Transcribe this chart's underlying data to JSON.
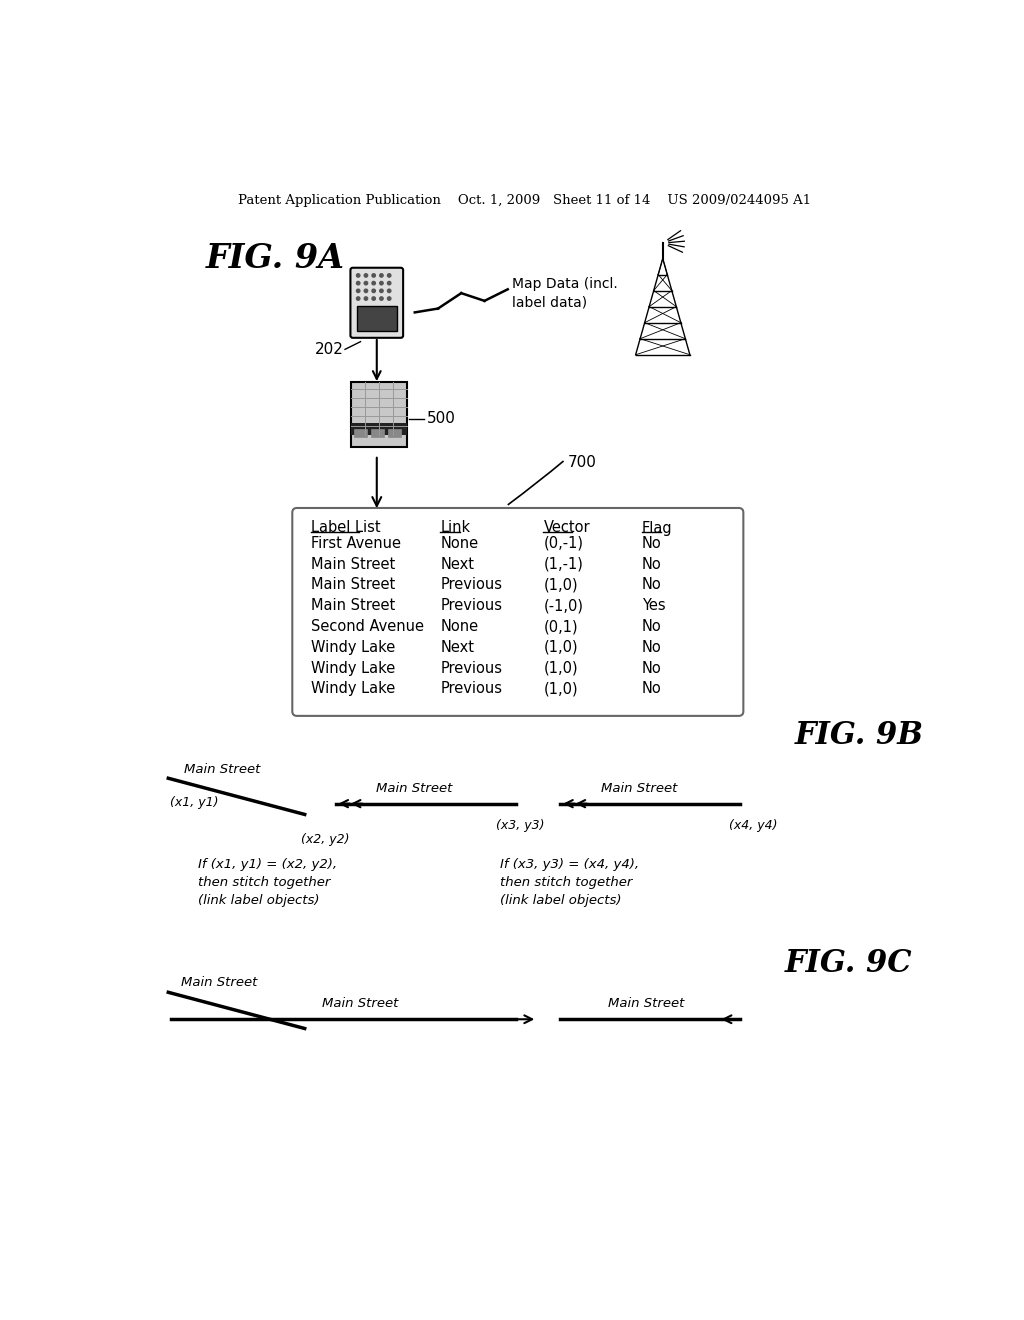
{
  "background_color": "#ffffff",
  "header_text": "Patent Application Publication    Oct. 1, 2009   Sheet 11 of 14    US 2009/0244095 A1",
  "fig9a_label": "FIG. 9A",
  "fig9b_label": "FIG. 9B",
  "fig9c_label": "FIG. 9C",
  "label_202": "202",
  "label_500": "500",
  "label_700": "700",
  "map_data_text": "Map Data (incl.\nlabel data)",
  "table_headers": [
    "Label List",
    "Link",
    "Vector",
    "Flag"
  ],
  "table_rows": [
    [
      "First Avenue",
      "None",
      "(0,-1)",
      "No"
    ],
    [
      "Main Street",
      "Next",
      "(1,-1)",
      "No"
    ],
    [
      "Main Street",
      "Previous",
      "(1,0)",
      "No"
    ],
    [
      "Main Street",
      "Previous",
      "(-1,0)",
      "Yes"
    ],
    [
      "Second Avenue",
      "None",
      "(0,1)",
      "No"
    ],
    [
      "Windy Lake",
      "Next",
      "(1,0)",
      "No"
    ],
    [
      "Windy Lake",
      "Previous",
      "(1,0)",
      "No"
    ],
    [
      "Windy Lake",
      "Previous",
      "(1,0)",
      "No"
    ]
  ],
  "stitch_text1": "If (x1, y1) = (x2, y2),\nthen stitch together\n(link label objects)",
  "stitch_text2": "If (x3, y3) = (x4, y4),\nthen stitch together\n(link label objects)"
}
